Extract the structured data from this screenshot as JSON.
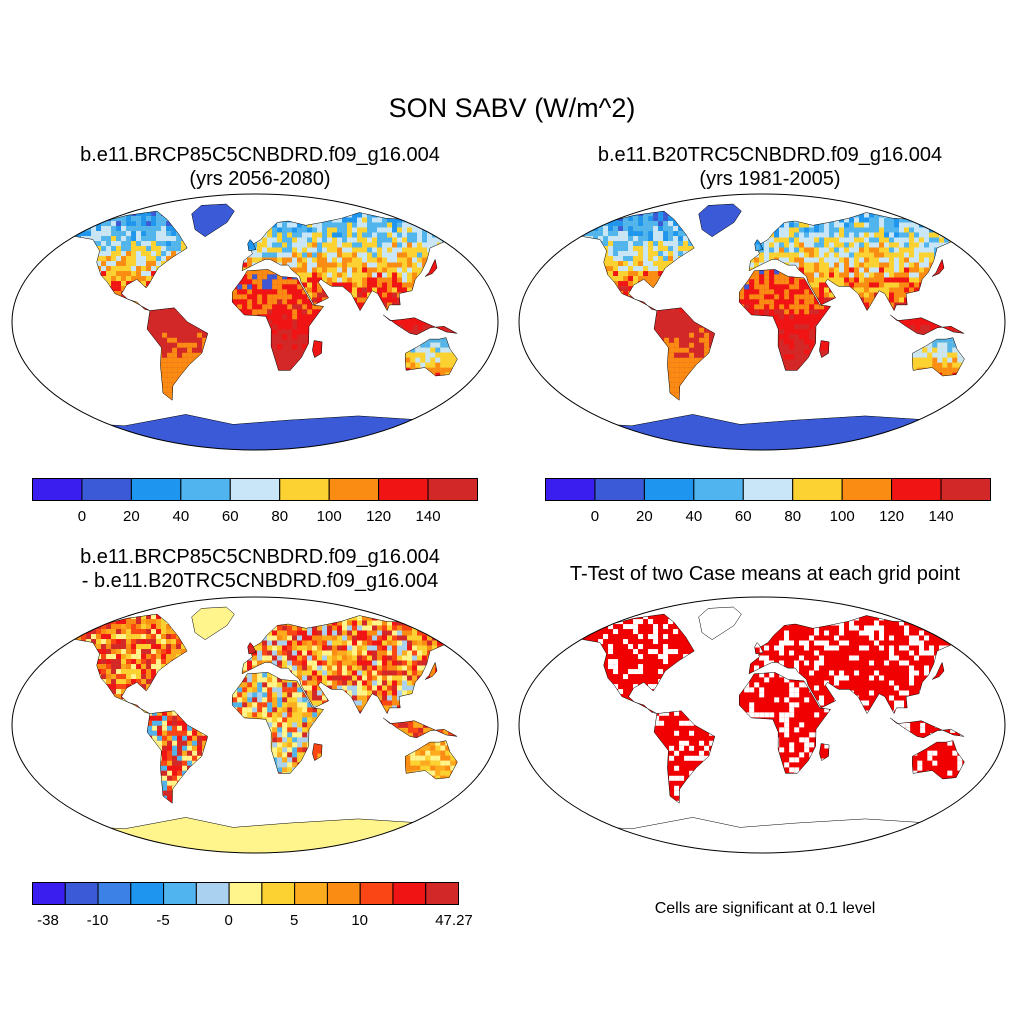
{
  "figure": {
    "title": "SON SABV (W/m^2)"
  },
  "panels": [
    {
      "id": "case1",
      "title_line1": "b.e11.BRCP85C5CNBDRD.f09_g16.004",
      "title_line2": "(yrs 2056-2080)",
      "scheme": "abs"
    },
    {
      "id": "case2",
      "title_line1": "b.e11.B20TRC5CNBDRD.f09_g16.004",
      "title_line2": "(yrs 1981-2005)",
      "scheme": "abs"
    },
    {
      "id": "diff",
      "title_line1": "b.e11.BRCP85C5CNBDRD.f09_g16.004",
      "title_line2": "- b.e11.B20TRC5CNBDRD.f09_g16.004",
      "scheme": "diff"
    },
    {
      "id": "ttest",
      "title_line1": "T-Test of two Case means at each grid point",
      "title_line2": "",
      "scheme": "sig",
      "note": "Cells are significant at 0.1 level"
    }
  ],
  "colorbars": {
    "abs": {
      "colors": [
        "#3a1ef0",
        "#3a5ad8",
        "#1e96f0",
        "#50b4ee",
        "#c8e6f8",
        "#fcd232",
        "#fa8c14",
        "#f01414",
        "#d22828"
      ],
      "labels": [
        "0",
        "20",
        "40",
        "60",
        "80",
        "100",
        "120",
        "140"
      ]
    },
    "diff": {
      "colors": [
        "#3a1ef0",
        "#3a5ad8",
        "#3c82e6",
        "#1e96f0",
        "#50b4ee",
        "#aad2f0",
        "#fff58c",
        "#fcd232",
        "#fcaa1e",
        "#fa8c14",
        "#fa4614",
        "#f01414",
        "#d22828"
      ],
      "labels": [
        "-38",
        "-10",
        "-5",
        "0",
        "5",
        "10",
        "47.27"
      ]
    }
  },
  "map_colors": {
    "ocean": "#ffffff",
    "sig": "#f00000",
    "outline": "#000000"
  }
}
